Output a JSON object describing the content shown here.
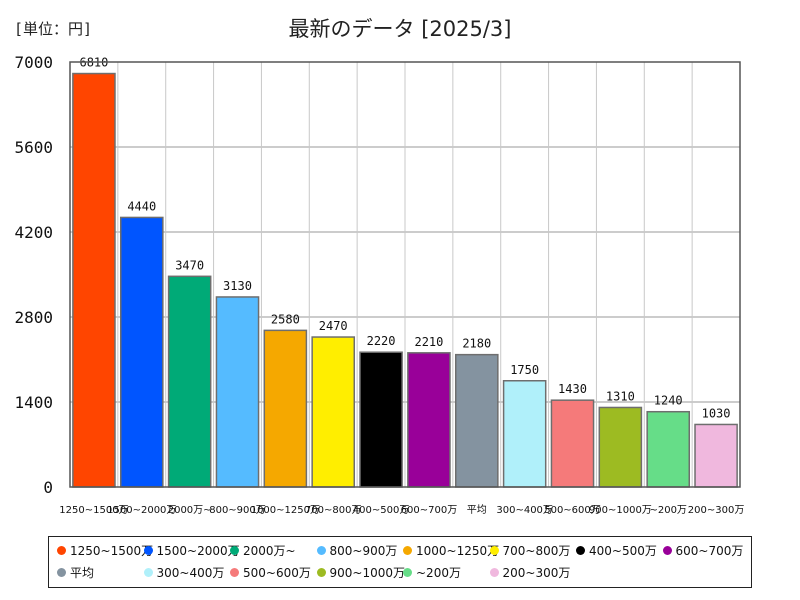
{
  "unit_label": "[単位：円]",
  "chart_data": {
    "type": "bar",
    "title": "最新のデータ [2025/3]",
    "categories": [
      "1250~1500万",
      "1500~2000万",
      "2000万~",
      "800~900万",
      "1000~1250万",
      "700~800万",
      "400~500万",
      "600~700万",
      "平均",
      "300~400万",
      "500~600万",
      "900~1000万",
      "~200万",
      "200~300万"
    ],
    "x_tick_labels": [
      "1250~1500万",
      "1500~2000万",
      "2000万~",
      "800~900万",
      "1000~1250万",
      "700~800万",
      "400~500万",
      "600~700万",
      "平均",
      "300~400万",
      "500~600万",
      "900~1000万",
      "~200万",
      "200~300万"
    ],
    "values": [
      6810,
      4440,
      3470,
      3130,
      2580,
      2470,
      2220,
      2210,
      2180,
      1750,
      1430,
      1310,
      1240,
      1030
    ],
    "data_labels": [
      "6810",
      "4440",
      "3470",
      "3130",
      "2580",
      "2470",
      "2220",
      "2210",
      "2180",
      "1750",
      "1430",
      "1310",
      "1240",
      "1030"
    ],
    "colors": [
      "#ff4500",
      "#0055ff",
      "#00aa77",
      "#55bbff",
      "#f5a800",
      "#ffee00",
      "#000000",
      "#990099",
      "#8493a0",
      "#b0f0fa",
      "#f57a7a",
      "#9dbb22",
      "#66dd88",
      "#f0b8de"
    ],
    "ylim": [
      0,
      7000
    ],
    "y_ticks": [
      0,
      1400,
      2800,
      4200,
      5600,
      7000
    ],
    "y_tick_labels": [
      "0",
      "1400",
      "2800",
      "4200",
      "5600",
      "7000"
    ],
    "grid": "horizontal",
    "xlabel": "",
    "ylabel": "",
    "legend_position": "bottom",
    "legend": [
      {
        "label": "1250~1500万",
        "color": "#ff4500"
      },
      {
        "label": "1500~2000万",
        "color": "#0055ff"
      },
      {
        "label": "2000万~",
        "color": "#00aa77"
      },
      {
        "label": "800~900万",
        "color": "#55bbff"
      },
      {
        "label": "1000~1250万",
        "color": "#f5a800"
      },
      {
        "label": "700~800万",
        "color": "#ffee00"
      },
      {
        "label": "400~500万",
        "color": "#000000"
      },
      {
        "label": "600~700万",
        "color": "#990099"
      },
      {
        "label": "平均",
        "color": "#8493a0"
      },
      {
        "label": "300~400万",
        "color": "#b0f0fa"
      },
      {
        "label": "500~600万",
        "color": "#f57a7a"
      },
      {
        "label": "900~1000万",
        "color": "#9dbb22"
      },
      {
        "label": "~200万",
        "color": "#66dd88"
      },
      {
        "label": "200~300万",
        "color": "#f0b8de"
      }
    ]
  }
}
